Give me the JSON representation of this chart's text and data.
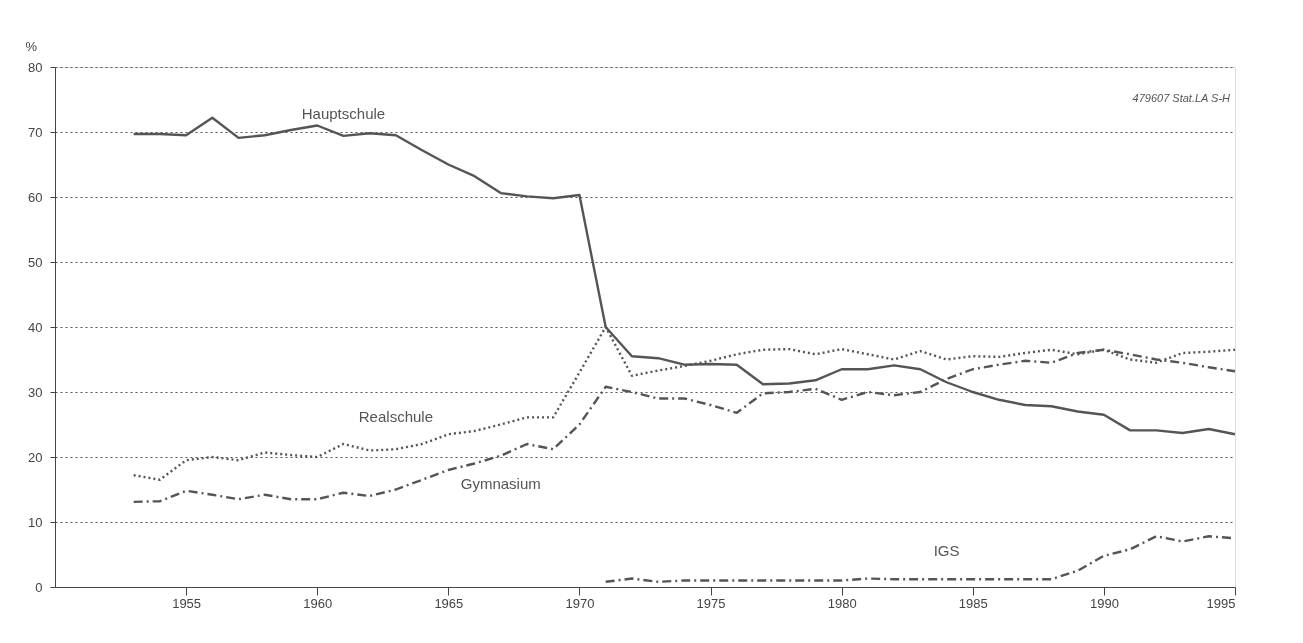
{
  "chart_data": {
    "type": "line",
    "ylabel": "%",
    "x": [
      1953,
      1954,
      1955,
      1956,
      1957,
      1958,
      1959,
      1960,
      1961,
      1962,
      1963,
      1964,
      1965,
      1966,
      1967,
      1968,
      1969,
      1970,
      1971,
      1972,
      1973,
      1974,
      1975,
      1976,
      1977,
      1978,
      1979,
      1980,
      1981,
      1982,
      1983,
      1984,
      1985,
      1986,
      1987,
      1988,
      1989,
      1990,
      1991,
      1992,
      1993,
      1994,
      1995
    ],
    "series": [
      {
        "name": "Hauptschule",
        "color": "#555555",
        "line_style": "solid",
        "values": [
          69.7,
          69.7,
          69.5,
          72.2,
          69.1,
          69.5,
          70.3,
          71,
          69.4,
          69.8,
          69.5,
          67.2,
          65,
          63.2,
          60.6,
          60.1,
          59.8,
          60.3,
          40,
          35.5,
          35.2,
          34.2,
          34.3,
          34.2,
          31.2,
          31.3,
          31.8,
          33.5,
          33.5,
          34.1,
          33.5,
          31.5,
          30,
          28.8,
          28,
          27.8,
          27,
          26.5,
          24.1,
          24.1,
          23.7,
          24.3,
          23.5
        ]
      },
      {
        "name": "Realschule",
        "color": "#555555",
        "line_style": "dotted",
        "values": [
          17.2,
          16.5,
          19.5,
          20,
          19.5,
          20.7,
          20.3,
          20,
          22,
          21,
          21.2,
          22,
          23.5,
          24,
          25,
          26.1,
          26.1,
          33,
          40,
          32.5,
          33.3,
          34,
          34.8,
          35.8,
          36.5,
          36.6,
          35.8,
          36.6,
          35.8,
          35,
          36.3,
          35,
          35.5,
          35.4,
          36,
          36.5,
          35.8,
          36.5,
          35,
          34.5,
          36,
          36.2,
          36.5
        ]
      },
      {
        "name": "Gymnasium",
        "color": "#555555",
        "line_style": "dashed",
        "values": [
          13.1,
          13.2,
          14.8,
          14.2,
          13.5,
          14.2,
          13.5,
          13.5,
          14.5,
          14,
          15,
          16.5,
          18,
          19,
          20.2,
          22,
          21.2,
          25,
          30.8,
          30,
          29,
          29,
          28,
          26.8,
          29.8,
          30,
          30.5,
          28.8,
          30,
          29.5,
          30,
          32,
          33.5,
          34.2,
          34.8,
          34.5,
          36,
          36.5,
          35.8,
          35,
          34.5,
          33.8,
          33.2
        ]
      },
      {
        "name": "IGS",
        "color": "#555555",
        "line_style": "dashed",
        "values": [
          null,
          null,
          null,
          null,
          null,
          null,
          null,
          null,
          null,
          null,
          null,
          null,
          null,
          null,
          null,
          null,
          null,
          null,
          0.8,
          1.3,
          0.8,
          1,
          1,
          1,
          1,
          1,
          1,
          1,
          1.3,
          1.2,
          1.2,
          1.2,
          1.2,
          1.2,
          1.2,
          1.2,
          2.5,
          4.8,
          5.8,
          7.8,
          7,
          7.8,
          7.5
        ]
      }
    ],
    "xlim": [
      1950,
      1995
    ],
    "xticks": [
      1955,
      1960,
      1965,
      1970,
      1975,
      1980,
      1985,
      1990,
      1995
    ],
    "ylim": [
      0,
      80
    ],
    "yticks": [
      0,
      10,
      20,
      30,
      40,
      50,
      60,
      70,
      80
    ],
    "grid": "y",
    "annotations": [
      "479607 Stat.LA S-H"
    ]
  }
}
